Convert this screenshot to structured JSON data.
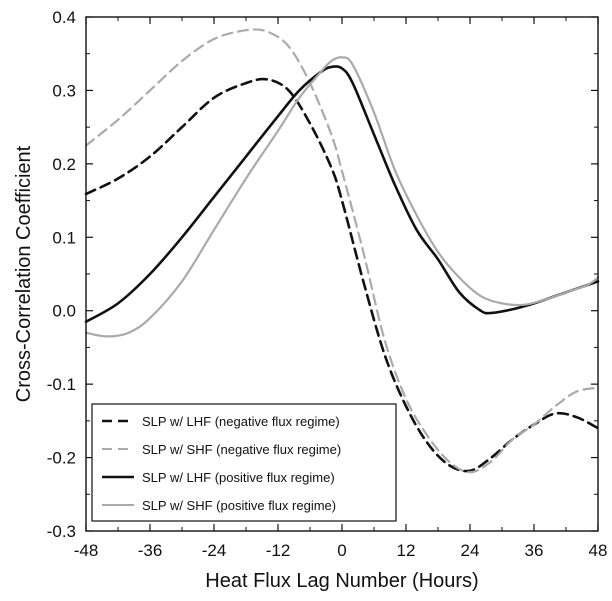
{
  "chart_data": {
    "type": "line",
    "title": "",
    "xlabel": "Heat Flux Lag Number (Hours)",
    "ylabel": "Cross-Correlation Coefficient",
    "xlim": [
      -48,
      48
    ],
    "ylim": [
      -0.3,
      0.4
    ],
    "xticks": [
      -48,
      -36,
      -24,
      -12,
      0,
      12,
      24,
      36,
      48
    ],
    "yticks": [
      -0.3,
      -0.2,
      -0.1,
      0.0,
      0.1,
      0.2,
      0.3,
      0.4
    ],
    "ytick_labels": [
      "-0.3",
      "-0.2",
      "-0.1",
      "0.0",
      "0.1",
      "0.2",
      "0.3",
      "0.4"
    ],
    "xtick_labels": [
      "-48",
      "-36",
      "-24",
      "-12",
      "0",
      "12",
      "24",
      "36",
      "48"
    ],
    "grid": false,
    "legend_position": "bottom-left",
    "series": [
      {
        "name": "SLP w/ LHF (negative flux regime)",
        "color": "#111111",
        "style": "dashed",
        "x": [
          -48,
          -42,
          -36,
          -30,
          -24,
          -18,
          -14,
          -10,
          -6,
          -2,
          0,
          4,
          8,
          12,
          16,
          20,
          24,
          28,
          32,
          36,
          40,
          44,
          48
        ],
        "y": [
          0.159,
          0.18,
          0.21,
          0.25,
          0.29,
          0.31,
          0.315,
          0.3,
          0.255,
          0.195,
          0.15,
          0.04,
          -0.06,
          -0.13,
          -0.18,
          -0.21,
          -0.218,
          -0.2,
          -0.175,
          -0.155,
          -0.14,
          -0.145,
          -0.16
        ]
      },
      {
        "name": "SLP w/ SHF (negative flux regime)",
        "color": "#aaaaaa",
        "style": "dashed",
        "x": [
          -48,
          -42,
          -36,
          -30,
          -24,
          -18,
          -14,
          -10,
          -6,
          -2,
          0,
          4,
          8,
          12,
          16,
          20,
          24,
          28,
          32,
          36,
          40,
          44,
          48
        ],
        "y": [
          0.225,
          0.26,
          0.3,
          0.34,
          0.37,
          0.382,
          0.38,
          0.36,
          0.31,
          0.24,
          0.19,
          0.08,
          -0.04,
          -0.12,
          -0.17,
          -0.205,
          -0.22,
          -0.205,
          -0.175,
          -0.155,
          -0.13,
          -0.11,
          -0.105
        ]
      },
      {
        "name": "SLP w/ LHF (positive flux regime)",
        "color": "#111111",
        "style": "solid",
        "x": [
          -48,
          -42,
          -36,
          -30,
          -24,
          -18,
          -12,
          -8,
          -4,
          -2,
          0,
          2,
          6,
          10,
          14,
          18,
          22,
          26,
          28,
          32,
          36,
          40,
          44,
          48
        ],
        "y": [
          -0.015,
          0.01,
          0.05,
          0.1,
          0.155,
          0.21,
          0.265,
          0.3,
          0.325,
          0.332,
          0.33,
          0.31,
          0.24,
          0.17,
          0.11,
          0.07,
          0.025,
          0.0,
          -0.003,
          0.002,
          0.01,
          0.02,
          0.03,
          0.04
        ]
      },
      {
        "name": "SLP w/ SHF (positive flux regime)",
        "color": "#aaaaaa",
        "style": "solid",
        "x": [
          -48,
          -44,
          -40,
          -36,
          -30,
          -24,
          -18,
          -12,
          -8,
          -4,
          -2,
          0,
          2,
          6,
          10,
          14,
          18,
          22,
          26,
          30,
          34,
          38,
          42,
          46,
          48
        ],
        "y": [
          -0.03,
          -0.035,
          -0.03,
          -0.01,
          0.04,
          0.11,
          0.18,
          0.245,
          0.29,
          0.325,
          0.34,
          0.345,
          0.335,
          0.27,
          0.19,
          0.13,
          0.08,
          0.045,
          0.02,
          0.01,
          0.008,
          0.015,
          0.025,
          0.035,
          0.045
        ]
      }
    ]
  }
}
